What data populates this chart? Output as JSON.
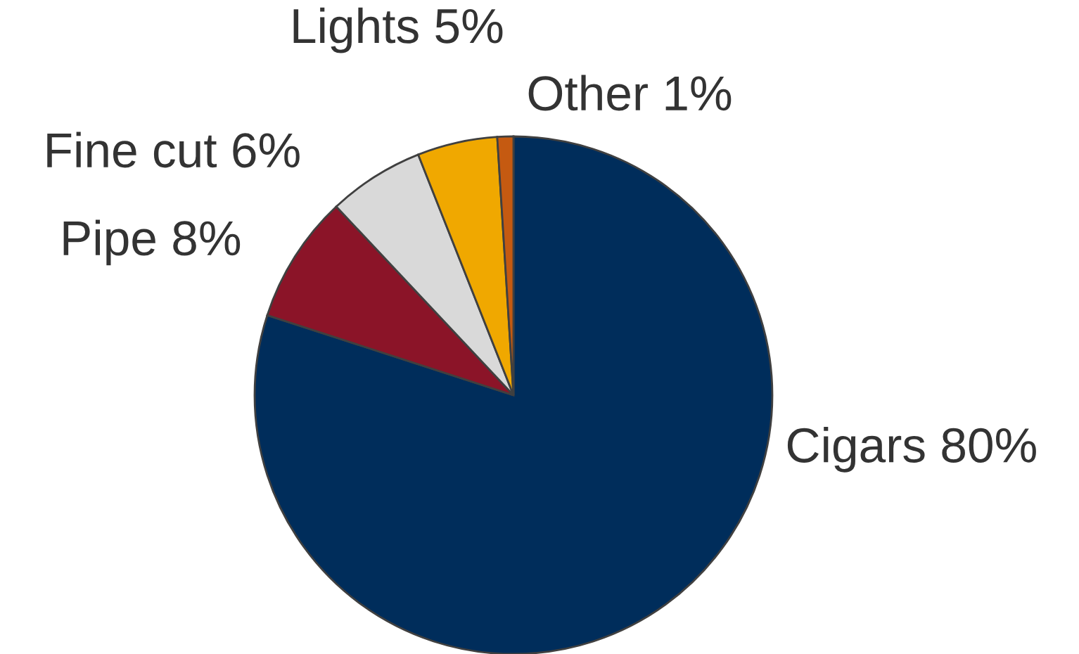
{
  "chart_data": {
    "type": "pie",
    "categories": [
      "Cigars",
      "Pipe",
      "Fine cut",
      "Lights",
      "Other"
    ],
    "values": [
      80,
      8,
      6,
      5,
      1
    ],
    "value_labels": [
      "80%",
      "8%",
      "6%",
      "5%",
      "1%"
    ],
    "colors": [
      "#002d5b",
      "#8b1428",
      "#d9d9d9",
      "#f0a800",
      "#c55a11"
    ],
    "legend": false
  }
}
